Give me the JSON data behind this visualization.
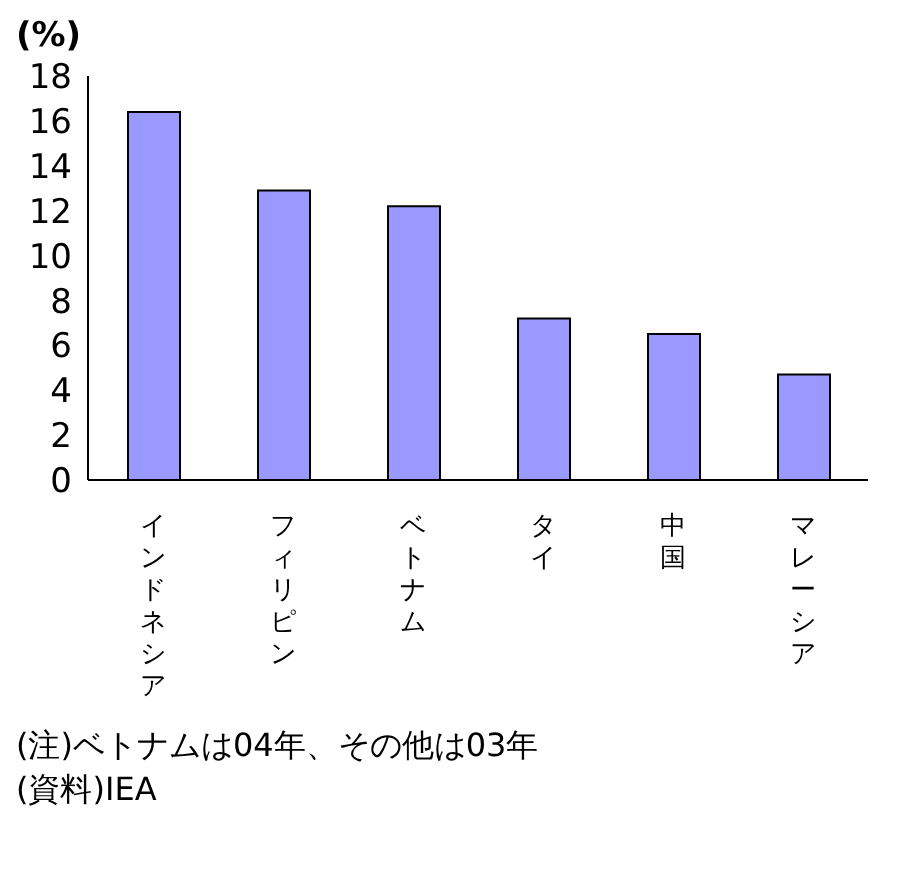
{
  "chart_data": {
    "type": "bar",
    "ylabel": "(%)",
    "categories": [
      "インドネシア",
      "フィリピン",
      "ベトナム",
      "タイ",
      "中国",
      "マレーシア"
    ],
    "values": [
      16.4,
      12.9,
      12.2,
      7.2,
      6.5,
      4.7
    ],
    "color": "#9999ff",
    "ylim": [
      0,
      18
    ],
    "yticks": [
      0,
      2,
      4,
      6,
      8,
      10,
      12,
      14,
      16,
      18
    ],
    "grid": false,
    "legend": false,
    "annotations": [
      "(注)ベトナムは04年、その他は03年",
      "(資料)IEA"
    ]
  }
}
